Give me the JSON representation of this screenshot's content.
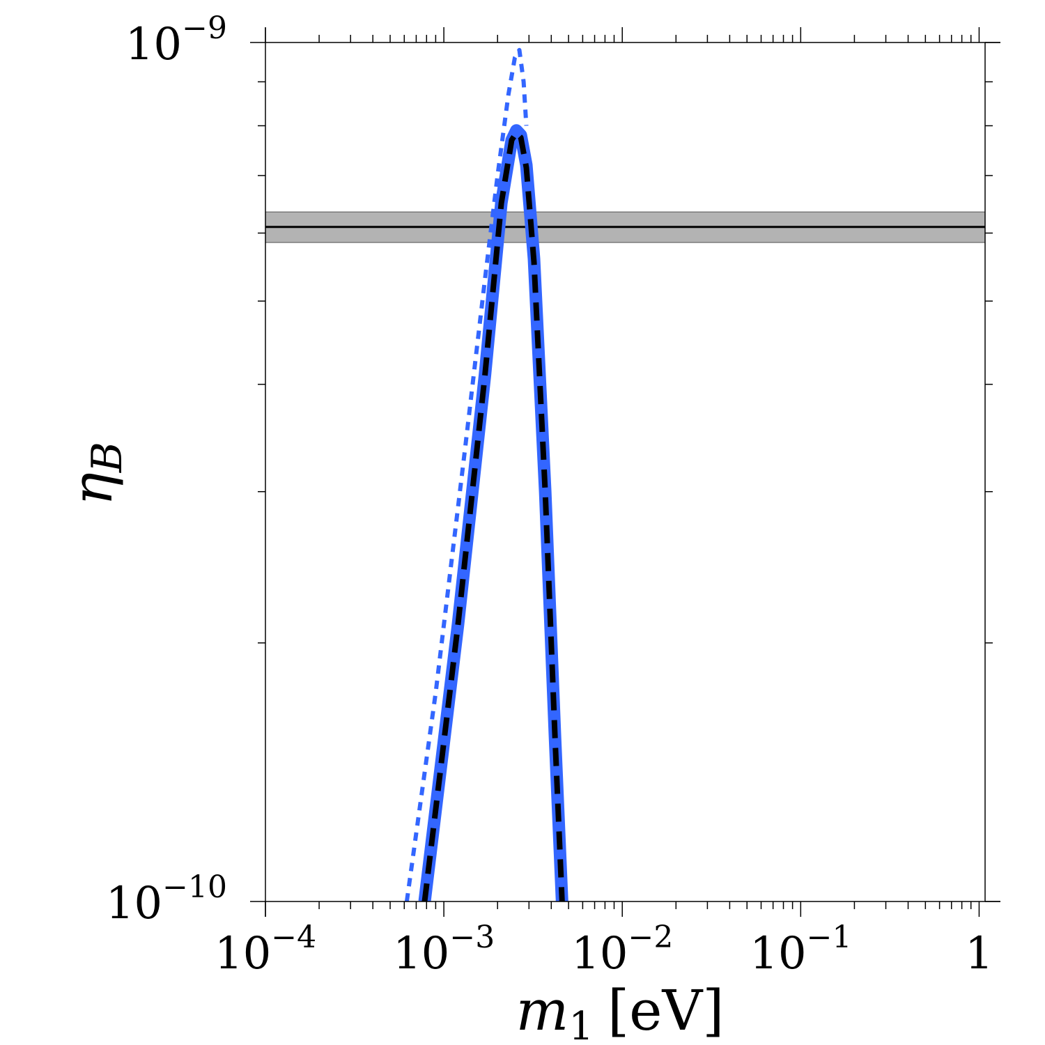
{
  "chart_data": {
    "type": "line",
    "title": "",
    "xlabel": {
      "main": "m",
      "sub": "1",
      "unit": "[eV]"
    },
    "ylabel": {
      "main": "η",
      "sub": "B"
    },
    "xscale": "log",
    "yscale": "log",
    "xlim": [
      0.0001,
      1.08
    ],
    "ylim": [
      1e-10,
      1e-09
    ],
    "grid": false,
    "x_tick_labels": [
      {
        "value": 0.0001,
        "base": "10",
        "exp": "−4"
      },
      {
        "value": 0.001,
        "base": "10",
        "exp": "−3"
      },
      {
        "value": 0.01,
        "base": "10",
        "exp": "−2"
      },
      {
        "value": 0.1,
        "base": "10",
        "exp": "−1"
      },
      {
        "value": 1,
        "base": "1",
        "exp": ""
      }
    ],
    "y_tick_labels": [
      {
        "value": 1e-10,
        "base": "10",
        "exp": "−10"
      },
      {
        "value": 1e-09,
        "base": "10",
        "exp": "−9"
      }
    ],
    "observed_band": {
      "center": 6.1e-10,
      "low": 5.85e-10,
      "high": 6.35e-10,
      "color": "#b3b3b3",
      "line_color": "#000000"
    },
    "series": [
      {
        "style": "solid-thick",
        "color": "#3366ff",
        "x": [
          0.00078,
          0.0012,
          0.0017,
          0.0021,
          0.0024,
          0.00255,
          0.0027,
          0.0029,
          0.0032,
          0.0037,
          0.0042,
          0.0046
        ],
        "y": [
          1e-10,
          2.1e-10,
          4.1e-10,
          6.5e-10,
          7.7e-10,
          7.9e-10,
          7.8e-10,
          7.2e-10,
          5.6e-10,
          3e-10,
          1.55e-10,
          1e-10
        ]
      },
      {
        "style": "dashed",
        "color": "#000000",
        "x": [
          0.00078,
          0.0012,
          0.0017,
          0.0021,
          0.0024,
          0.00255,
          0.0027,
          0.0029,
          0.0032,
          0.0037,
          0.0042,
          0.0046
        ],
        "y": [
          1e-10,
          2.1e-10,
          4.1e-10,
          6.5e-10,
          7.7e-10,
          7.85e-10,
          7.75e-10,
          7.15e-10,
          5.55e-10,
          3e-10,
          1.55e-10,
          1e-10
        ]
      },
      {
        "style": "dotted",
        "color": "#3366ff",
        "x": [
          0.00062,
          0.0009,
          0.0013,
          0.0017,
          0.002,
          0.0023,
          0.0025,
          0.00265,
          0.0028,
          0.0029
        ],
        "y": [
          1e-10,
          1.75e-10,
          3.3e-10,
          5.3e-10,
          7e-10,
          8.7e-10,
          9.6e-10,
          9.8e-10,
          9e-10,
          8e-10
        ]
      }
    ]
  }
}
